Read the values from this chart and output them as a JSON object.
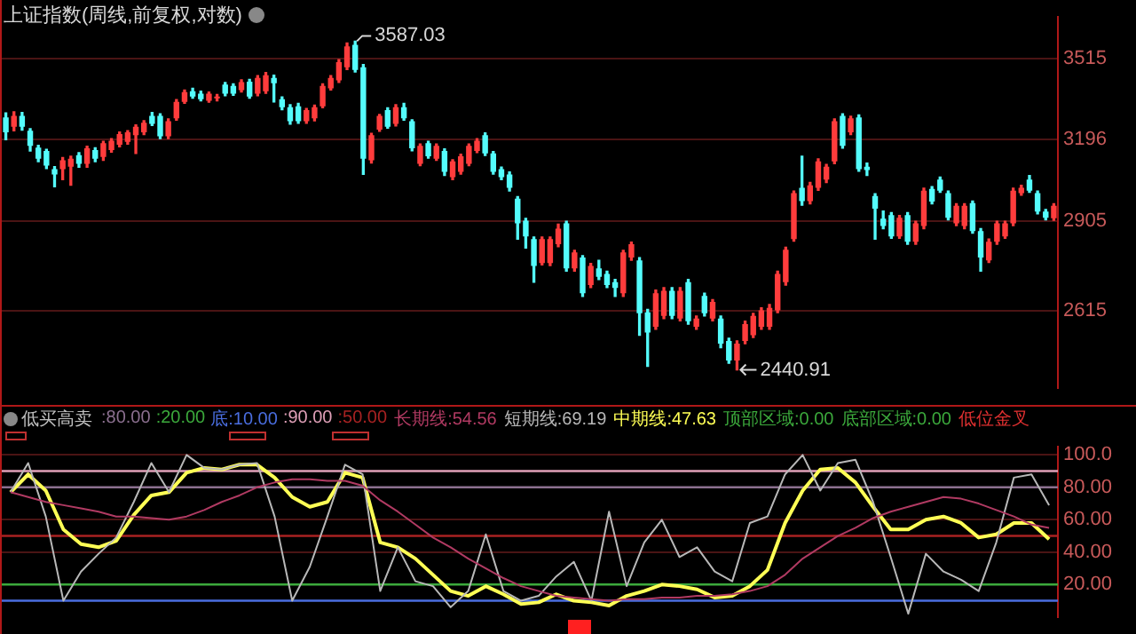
{
  "chart_data": [
    {
      "type": "candlestick",
      "title": "上证指数(周线,前复权,对数)",
      "categories": [
        null,
        null,
        null,
        null,
        null,
        null,
        null,
        null,
        null,
        null,
        null,
        null,
        null,
        null,
        null,
        null,
        null,
        null,
        null,
        null,
        null,
        null,
        null,
        null,
        null,
        null,
        null,
        null,
        null,
        null,
        null,
        null,
        null,
        null,
        null,
        null,
        null,
        null,
        null,
        null,
        null,
        null,
        null,
        null,
        null,
        null,
        null,
        null,
        null,
        null,
        null,
        null,
        null,
        null,
        null,
        null,
        null,
        null,
        null,
        null,
        null,
        null,
        null,
        null,
        null,
        null,
        null,
        null,
        null,
        null,
        null,
        null,
        null,
        null,
        null,
        null,
        null,
        null,
        null,
        null,
        null,
        null,
        null,
        null,
        null,
        null,
        null,
        null,
        null,
        null,
        null,
        null,
        null,
        null,
        null,
        null,
        null,
        null,
        null,
        null,
        null,
        null,
        null,
        null,
        null,
        null,
        null,
        null,
        null,
        null,
        null,
        null,
        null,
        null,
        null,
        null,
        null,
        null,
        null,
        null,
        null,
        null,
        null,
        null,
        null,
        null,
        null,
        null,
        null,
        null
      ],
      "ohlc": [
        [
          3281,
          3298,
          3196,
          3224
        ],
        [
          3245,
          3302,
          3230,
          3287
        ],
        [
          3287,
          3300,
          3232,
          3245
        ],
        [
          3230,
          3238,
          3154,
          3173
        ],
        [
          3167,
          3175,
          3115,
          3126
        ],
        [
          3154,
          3160,
          3090,
          3101
        ],
        [
          3088,
          3097,
          3025,
          3069
        ],
        [
          3088,
          3130,
          3050,
          3120
        ],
        [
          3097,
          3135,
          3030,
          3126
        ],
        [
          3139,
          3148,
          3095,
          3107
        ],
        [
          3107,
          3172,
          3095,
          3164
        ],
        [
          3158,
          3166,
          3115,
          3126
        ],
        [
          3132,
          3190,
          3120,
          3183
        ],
        [
          3158,
          3200,
          3150,
          3192
        ],
        [
          3177,
          3225,
          3170,
          3217
        ],
        [
          3188,
          3230,
          3180,
          3224
        ],
        [
          3213,
          3252,
          3145,
          3245
        ],
        [
          3224,
          3268,
          3215,
          3260
        ],
        [
          3287,
          3300,
          3250,
          3256
        ],
        [
          3287,
          3295,
          3200,
          3209
        ],
        [
          3209,
          3275,
          3200,
          3266
        ],
        [
          3277,
          3350,
          3270,
          3341
        ],
        [
          3341,
          3388,
          3335,
          3379
        ],
        [
          3383,
          3395,
          3355,
          3362
        ],
        [
          3373,
          3383,
          3345,
          3351
        ],
        [
          3345,
          3380,
          3340,
          3373
        ],
        [
          3355,
          3370,
          3345,
          3362
        ],
        [
          3409,
          3418,
          3365,
          3373
        ],
        [
          3404,
          3412,
          3367,
          3373
        ],
        [
          3387,
          3428,
          3380,
          3419
        ],
        [
          3421,
          3430,
          3355,
          3362
        ],
        [
          3373,
          3445,
          3365,
          3436
        ],
        [
          3383,
          3458,
          3375,
          3447
        ],
        [
          3436,
          3447,
          3341,
          3415
        ],
        [
          3351,
          3360,
          3310,
          3320
        ],
        [
          3320,
          3330,
          3255,
          3266
        ],
        [
          3324,
          3335,
          3258,
          3266
        ],
        [
          3266,
          3315,
          3258,
          3309
        ],
        [
          3277,
          3328,
          3268,
          3320
        ],
        [
          3324,
          3412,
          3318,
          3404
        ],
        [
          3394,
          3445,
          3388,
          3436
        ],
        [
          3426,
          3510,
          3418,
          3500
        ],
        [
          3479,
          3580,
          3470,
          3565
        ],
        [
          3572,
          3587.03,
          3460,
          3468
        ],
        [
          3479,
          3490,
          3069,
          3126
        ],
        [
          3120,
          3220,
          3110,
          3213
        ],
        [
          3234,
          3292,
          3228,
          3287
        ],
        [
          3309,
          3318,
          3240,
          3245
        ],
        [
          3256,
          3330,
          3248,
          3320
        ],
        [
          3320,
          3335,
          3270,
          3277
        ],
        [
          3266,
          3272,
          3155,
          3164
        ],
        [
          3107,
          3180,
          3100,
          3173
        ],
        [
          3183,
          3190,
          3128,
          3135
        ],
        [
          3126,
          3180,
          3120,
          3173
        ],
        [
          3154,
          3162,
          3065,
          3078
        ],
        [
          3059,
          3122,
          3050,
          3116
        ],
        [
          3078,
          3142,
          3070,
          3135
        ],
        [
          3107,
          3180,
          3100,
          3173
        ],
        [
          3154,
          3200,
          3148,
          3192
        ],
        [
          3213,
          3222,
          3138,
          3145
        ],
        [
          3145,
          3152,
          3070,
          3078
        ],
        [
          3088,
          3095,
          3050,
          3059
        ],
        [
          3069,
          3078,
          3010,
          3021
        ],
        [
          2983,
          2990,
          2845,
          2898
        ],
        [
          2907,
          2915,
          2815,
          2854
        ],
        [
          2845,
          2852,
          2705,
          2757
        ],
        [
          2766,
          2852,
          2760,
          2845
        ],
        [
          2766,
          2852,
          2758,
          2845
        ],
        [
          2828,
          2895,
          2820,
          2880
        ],
        [
          2898,
          2905,
          2740,
          2749
        ],
        [
          2749,
          2808,
          2740,
          2801
        ],
        [
          2784,
          2790,
          2660,
          2670
        ],
        [
          2696,
          2765,
          2688,
          2757
        ],
        [
          2749,
          2775,
          2713,
          2722
        ],
        [
          2731,
          2740,
          2688,
          2696
        ],
        [
          2705,
          2714,
          2660,
          2687
        ],
        [
          2670,
          2808,
          2660,
          2801
        ],
        [
          2784,
          2835,
          2775,
          2828
        ],
        [
          2775,
          2784,
          2542,
          2608
        ],
        [
          2611,
          2620,
          2451,
          2550
        ],
        [
          2567,
          2680,
          2560,
          2670
        ],
        [
          2600,
          2688,
          2592,
          2678
        ],
        [
          2678,
          2688,
          2592,
          2600
        ],
        [
          2592,
          2688,
          2585,
          2678
        ],
        [
          2705,
          2714,
          2575,
          2584
        ],
        [
          2567,
          2600,
          2560,
          2592
        ],
        [
          2662,
          2670,
          2600,
          2608
        ],
        [
          2592,
          2650,
          2585,
          2643
        ],
        [
          2592,
          2600,
          2505,
          2517
        ],
        [
          2525,
          2533,
          2460,
          2468
        ],
        [
          2468,
          2525,
          2440.91,
          2517
        ],
        [
          2525,
          2584,
          2517,
          2575
        ],
        [
          2542,
          2608,
          2535,
          2600
        ],
        [
          2567,
          2625,
          2560,
          2617
        ],
        [
          2567,
          2635,
          2560,
          2625
        ],
        [
          2617,
          2740,
          2610,
          2731
        ],
        [
          2705,
          2818,
          2696,
          2810
        ],
        [
          2845,
          3010,
          2838,
          3002
        ],
        [
          3021,
          3135,
          2960,
          2974
        ],
        [
          2974,
          3040,
          2965,
          3030
        ],
        [
          3021,
          3125,
          3012,
          3116
        ],
        [
          3050,
          3105,
          3040,
          3097
        ],
        [
          3116,
          3275,
          3108,
          3266
        ],
        [
          3287,
          3295,
          3165,
          3173
        ],
        [
          3224,
          3285,
          3215,
          3277
        ],
        [
          3281,
          3290,
          3080,
          3088
        ],
        [
          3097,
          3110,
          3065,
          3085
        ],
        [
          2992,
          3000,
          2845,
          2948
        ],
        [
          2914,
          2940,
          2880,
          2889
        ],
        [
          2926,
          2935,
          2848,
          2854
        ],
        [
          2854,
          2925,
          2848,
          2917
        ],
        [
          2926,
          2935,
          2828,
          2836
        ],
        [
          2836,
          2905,
          2828,
          2898
        ],
        [
          2889,
          3020,
          2880,
          3011
        ],
        [
          3017,
          3025,
          2965,
          2973
        ],
        [
          3050,
          3059,
          3005,
          3011
        ],
        [
          3002,
          3010,
          2910,
          2917
        ],
        [
          2898,
          2965,
          2890,
          2958
        ],
        [
          2889,
          2965,
          2880,
          2958
        ],
        [
          2967,
          2975,
          2865,
          2872
        ],
        [
          2872,
          2880,
          2740,
          2784
        ],
        [
          2775,
          2845,
          2768,
          2836
        ],
        [
          2836,
          2905,
          2828,
          2898
        ],
        [
          2854,
          2905,
          2848,
          2898
        ],
        [
          2898,
          3020,
          2890,
          3011
        ],
        [
          3002,
          3030,
          2995,
          3021
        ],
        [
          3050,
          3065,
          3005,
          3011
        ],
        [
          3002,
          3010,
          2930,
          2938
        ],
        [
          2938,
          2945,
          2910,
          2917
        ],
        [
          2915,
          2965,
          2908,
          2958
        ]
      ],
      "ylim": [
        2390,
        3690
      ],
      "yticks": [
        2615,
        2905,
        3196,
        3515
      ],
      "log": true,
      "grid": "y",
      "tick_labels": "y",
      "annotations": [
        "3587.03",
        "2440.91"
      ]
    },
    {
      "type": "line",
      "title": "低买高卖",
      "categories": [
        null,
        null,
        null,
        null,
        null,
        null,
        null,
        null,
        null,
        null,
        null,
        null,
        null,
        null,
        null,
        null,
        null,
        null,
        null,
        null,
        null,
        null,
        null,
        null,
        null,
        null,
        null,
        null,
        null,
        null,
        null,
        null,
        null,
        null,
        null,
        null,
        null,
        null,
        null,
        null,
        null,
        null,
        null,
        null,
        null,
        null,
        null,
        null,
        null,
        null,
        null,
        null,
        null,
        null,
        null,
        null,
        null,
        null,
        null,
        null
      ],
      "series": [
        {
          "name": "长期线:54.56",
          "color": "#b03a62",
          "values": [
            77,
            74,
            71,
            69,
            67,
            65,
            62,
            62,
            61,
            60,
            62,
            66,
            71,
            75,
            80,
            83,
            85,
            85,
            84,
            84,
            81,
            72,
            65,
            57,
            49,
            43,
            36,
            30,
            24,
            19,
            16,
            13,
            12,
            11,
            10,
            11,
            11,
            12,
            12,
            13,
            13,
            14,
            16,
            19,
            26,
            36,
            43,
            50,
            55,
            61,
            65,
            68,
            71,
            74,
            73,
            70,
            66,
            62,
            57,
            55
          ]
        },
        {
          "name": "短期线:69.19",
          "color": "#b8b8b8",
          "values": [
            77,
            95,
            62,
            10,
            28,
            39,
            49,
            71,
            95,
            77,
            100,
            92,
            91,
            94,
            95,
            62,
            10,
            31,
            62,
            94,
            88,
            16,
            43,
            22,
            19,
            6,
            16,
            51,
            16,
            10,
            13,
            25,
            34,
            10,
            65,
            19,
            46,
            60,
            37,
            43,
            28,
            22,
            58,
            62,
            88,
            100,
            78,
            95,
            97,
            71,
            37,
            2,
            39,
            28,
            23,
            16,
            46,
            86,
            88,
            69
          ]
        },
        {
          "name": "中期线:47.63",
          "color": "#ffff55",
          "values": [
            77,
            88,
            78,
            54,
            45,
            43,
            47,
            63,
            75,
            77,
            89,
            92,
            91,
            94,
            94,
            86,
            74,
            68,
            71,
            89,
            86,
            46,
            43,
            36,
            26,
            16,
            13,
            19,
            14,
            8,
            9,
            14,
            10,
            9,
            7,
            13,
            16,
            20,
            19,
            17,
            12,
            13,
            19,
            29,
            58,
            78,
            91,
            92,
            83,
            68,
            54,
            54,
            60,
            62,
            58,
            49,
            51,
            58,
            58,
            48
          ]
        }
      ],
      "ref_lines": [
        {
          "axis": "y",
          "value": 80,
          "label": ":80.00",
          "color": "#8c7090"
        },
        {
          "axis": "y",
          "value": 20,
          "label": ":20.00",
          "color": "#3caa3c"
        },
        {
          "axis": "y",
          "value": 10,
          "label": "底:10.00",
          "color": "#4a6ee0"
        },
        {
          "axis": "y",
          "value": 90,
          "label": ":90.00",
          "color": "#e0a0b8"
        },
        {
          "axis": "y",
          "value": 50,
          "label": ":50.00",
          "color": "#a82222"
        }
      ],
      "annotations": [
        "顶部区域:0.00",
        "底部区域:0.00",
        "低位金叉"
      ],
      "ylim": [
        0,
        105
      ],
      "yticks": [
        {
          "value": 20,
          "label": "20.00"
        },
        {
          "value": 40,
          "label": "40.00"
        },
        {
          "value": 60,
          "label": "60.00"
        },
        {
          "value": 80,
          "label": "80.00"
        },
        {
          "value": 100,
          "label": "100.0"
        }
      ],
      "grid": "y",
      "legend": "top left",
      "tick_labels": "y"
    }
  ]
}
